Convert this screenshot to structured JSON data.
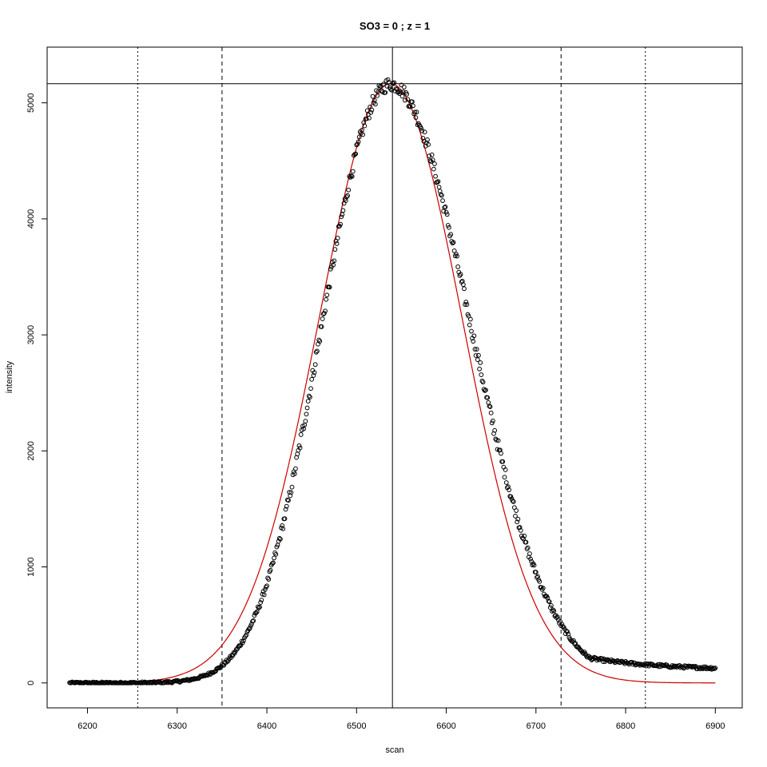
{
  "chart_data": {
    "type": "scatter",
    "title": "SO3 = 0 ; z = 1",
    "xlabel": "scan",
    "ylabel": "intensity",
    "xlim": [
      6155,
      6930
    ],
    "ylim": [
      -215,
      5480
    ],
    "x_ticks": [
      6200,
      6300,
      6400,
      6500,
      6600,
      6700,
      6800,
      6900
    ],
    "y_ticks": [
      0,
      1000,
      2000,
      3000,
      4000,
      5000
    ],
    "grid": false,
    "legend": "none",
    "colors": {
      "observed": "#000000",
      "fit": "#cc0000",
      "reference": "#000000"
    },
    "observed_model": {
      "x_range": [
        6180,
        6900
      ],
      "peak_x": 6538,
      "peak_y": 5160,
      "sigma_left": 80,
      "sigma_right": 88,
      "right_tail_baseline": 110,
      "noise_amplitude": 60
    },
    "fit_curve": {
      "x_range": [
        6180,
        6900
      ],
      "peak_x": 6538,
      "peak_y": 5165,
      "sigma": 80
    },
    "reference_lines": {
      "horizontal_solid_y": 5165,
      "vertical_solid_x": 6540,
      "vertical_dashed_x": [
        6350,
        6728
      ],
      "vertical_dotted_x": [
        6256,
        6822
      ]
    }
  }
}
